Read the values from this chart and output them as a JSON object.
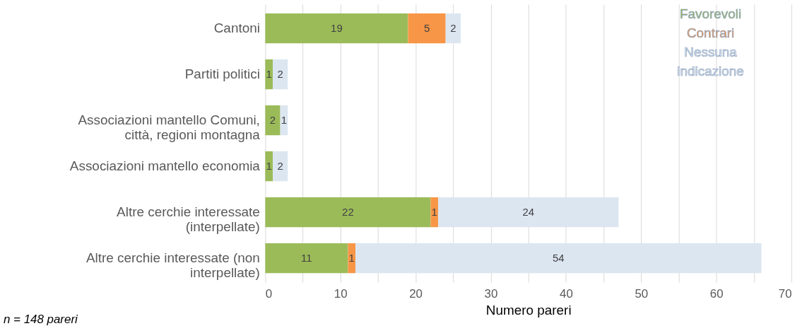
{
  "chart_data": {
    "type": "bar",
    "orientation": "horizontal",
    "stacked": true,
    "categories": [
      "Cantoni",
      "Partiti politici",
      "Associazioni mantello Comuni, città, regioni montagna",
      "Associazioni mantello economia",
      "Altre cerchie interessate (interpellate)",
      "Altre cerchie interessate (non interpellate)"
    ],
    "series": [
      {
        "name": "Favorevoli",
        "color": "#9bbb59",
        "values": [
          19,
          1,
          2,
          1,
          22,
          11
        ]
      },
      {
        "name": "Contrari",
        "color": "#f79646",
        "values": [
          5,
          null,
          null,
          null,
          1,
          1
        ]
      },
      {
        "name": "Nessuna indicazione",
        "color": "#dce6f1",
        "values": [
          2,
          2,
          1,
          2,
          24,
          54
        ]
      }
    ],
    "xlim": [
      0,
      70
    ],
    "xticks": [
      0,
      {
        "value": 5,
        "label": null
      },
      10,
      {
        "value": 15,
        "label": null
      },
      20,
      {
        "value": 25,
        "label": null
      },
      30,
      {
        "value": 35,
        "label": null
      },
      40,
      {
        "value": 45,
        "label": null
      },
      50,
      {
        "value": 55,
        "label": null
      },
      60,
      {
        "value": 65,
        "label": null
      },
      70
    ],
    "xlabel": "Numero pareri",
    "grid": "x",
    "legend": "top right",
    "data_labels": true,
    "annotations": [
      "n = 148 pareri"
    ]
  }
}
